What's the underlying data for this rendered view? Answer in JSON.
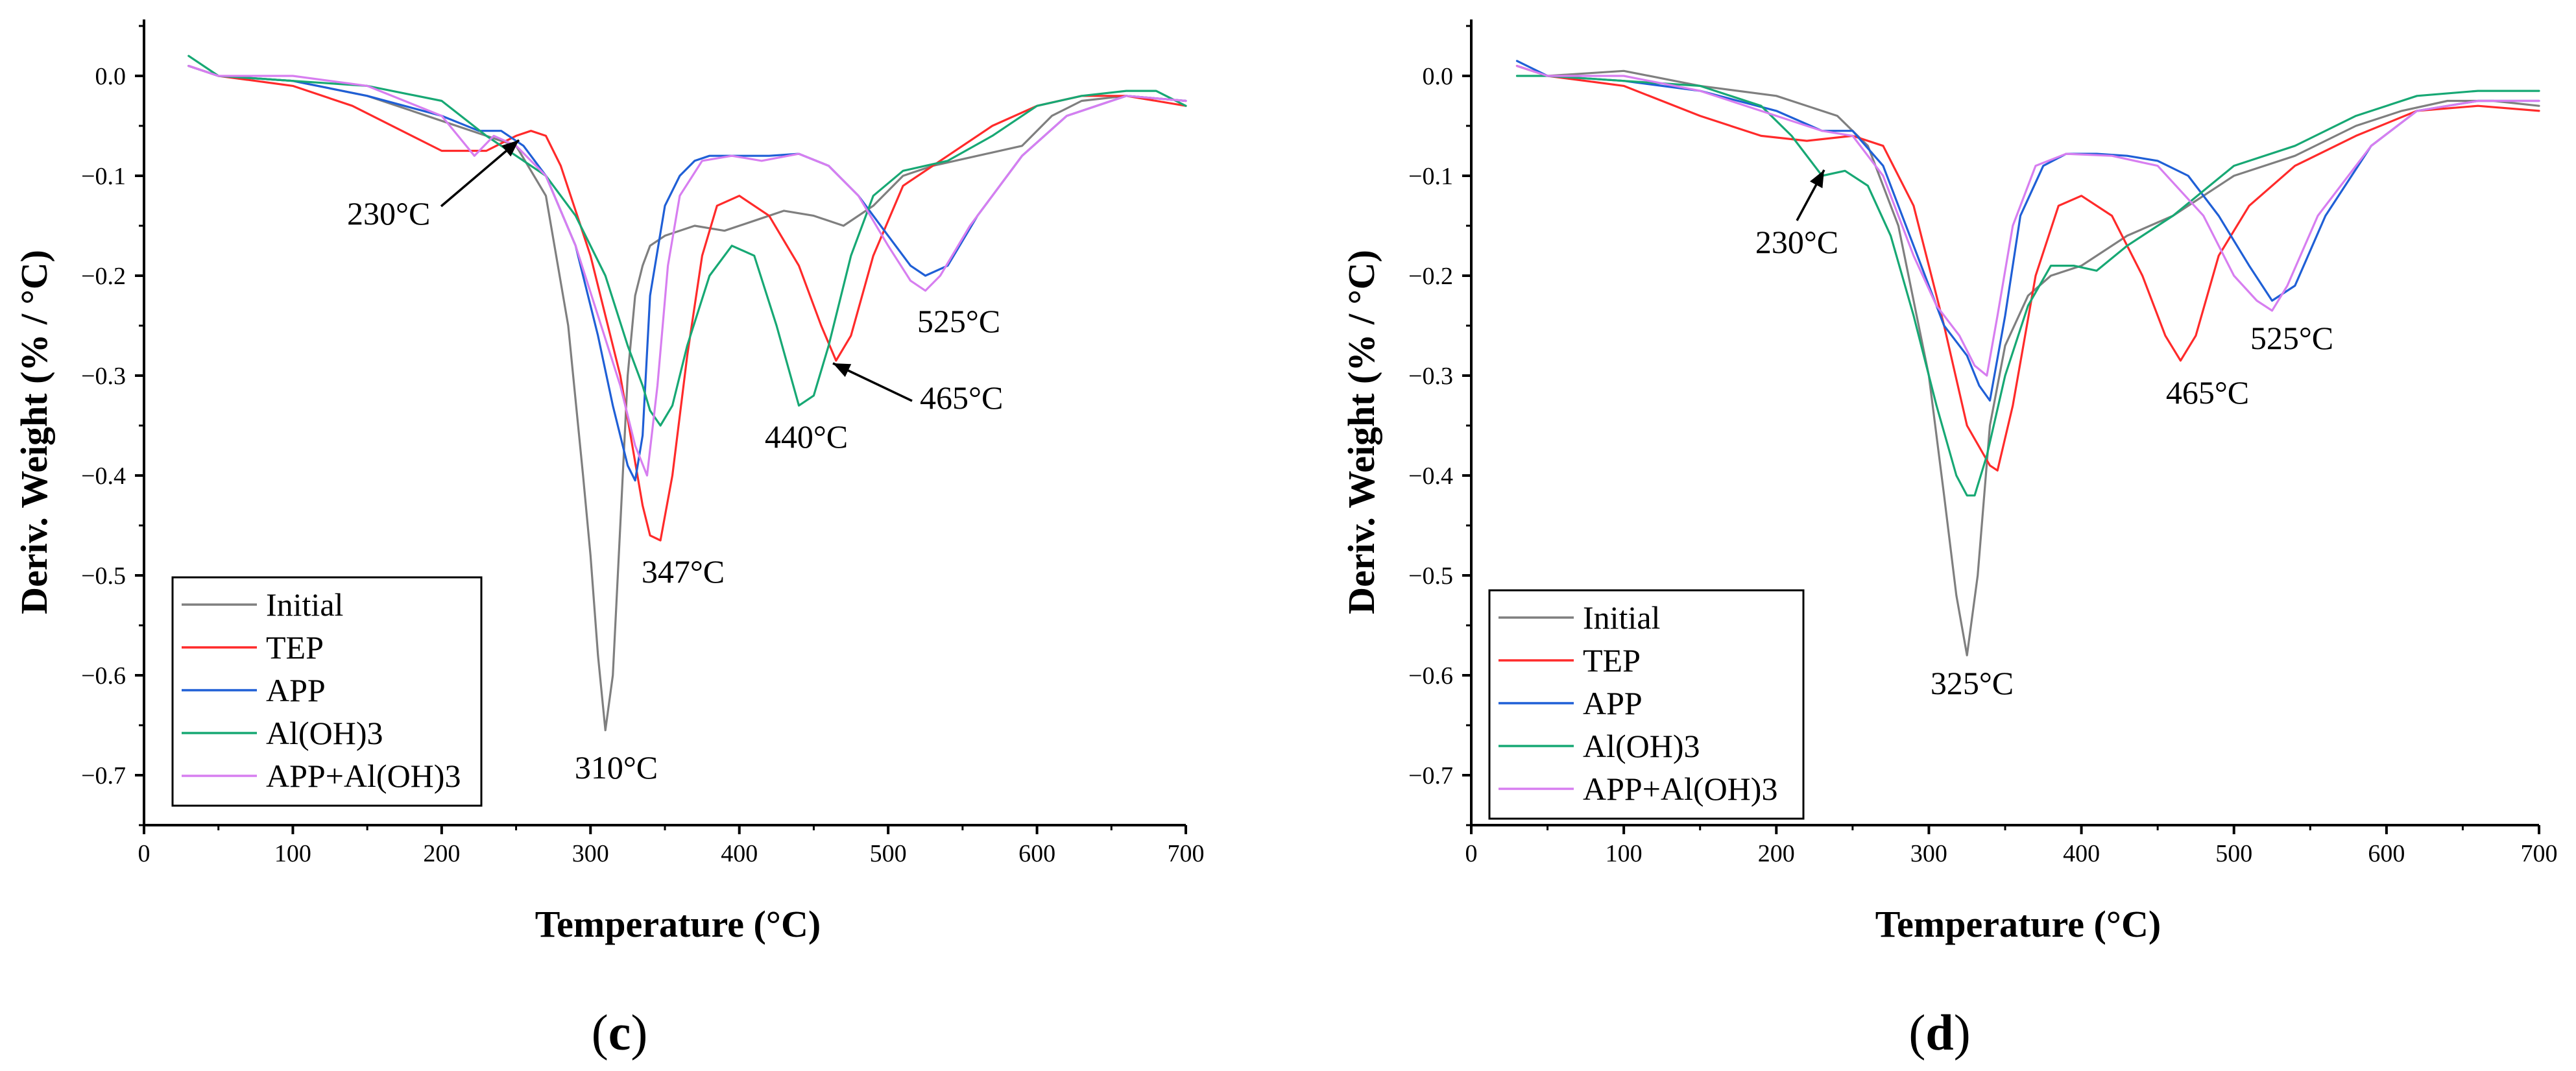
{
  "figure": {
    "panels": [
      "c",
      "d"
    ]
  },
  "colors": {
    "Initial": "#7f7f7f",
    "TEP": "#ff2a2a",
    "APP": "#1f5fd6",
    "Al(OH)3": "#17a874",
    "APP+Al(OH)3": "#d77ef0"
  },
  "chart_data": [
    {
      "type": "line",
      "panel": "c",
      "panel_label": "(c)",
      "panel_letter": "c",
      "xlabel": "Temperature (°C)",
      "ylabel": "Deriv. Weight (% / °C)",
      "xlim": [
        0,
        700
      ],
      "ylim": [
        -0.75,
        0.05
      ],
      "xticks": [
        0,
        100,
        200,
        300,
        400,
        500,
        600,
        700
      ],
      "xtick_labels": [
        "0",
        "100",
        "200",
        "300",
        "400",
        "500",
        "600",
        "700"
      ],
      "yticks": [
        0.0,
        -0.1,
        -0.2,
        -0.3,
        -0.4,
        -0.5,
        -0.6,
        -0.7
      ],
      "ytick_labels": [
        "0.0",
        "−0.1",
        "−0.2",
        "−0.3",
        "−0.4",
        "−0.5",
        "−0.6",
        "−0.7"
      ],
      "grid": false,
      "legend_position": "bottom-left",
      "legend": [
        "Initial",
        "TEP",
        "APP",
        "Al(OH)3",
        "APP+Al(OH)3"
      ],
      "annotations": [
        {
          "text": "230°C",
          "x": 230,
          "y": -0.07,
          "arrow": true
        },
        {
          "text": "310°C",
          "x": 310,
          "y": -0.655,
          "arrow": false
        },
        {
          "text": "347°C",
          "x": 347,
          "y": -0.47,
          "arrow": false
        },
        {
          "text": "440°C",
          "x": 440,
          "y": -0.33,
          "arrow": false
        },
        {
          "text": "465°C",
          "x": 465,
          "y": -0.285,
          "arrow": true
        },
        {
          "text": "525°C",
          "x": 525,
          "y": -0.2,
          "arrow": false
        }
      ],
      "series": [
        {
          "name": "Initial",
          "x": [
            30,
            50,
            100,
            150,
            200,
            230,
            250,
            270,
            285,
            295,
            300,
            305,
            310,
            315,
            320,
            325,
            330,
            335,
            340,
            350,
            370,
            390,
            410,
            430,
            450,
            470,
            490,
            510,
            530,
            560,
            590,
            610,
            630,
            660,
            700
          ],
          "y": [
            0.01,
            0.0,
            -0.005,
            -0.02,
            -0.045,
            -0.06,
            -0.07,
            -0.12,
            -0.25,
            -0.4,
            -0.48,
            -0.58,
            -0.655,
            -0.6,
            -0.45,
            -0.3,
            -0.22,
            -0.19,
            -0.17,
            -0.16,
            -0.15,
            -0.155,
            -0.145,
            -0.135,
            -0.14,
            -0.15,
            -0.13,
            -0.1,
            -0.09,
            -0.08,
            -0.07,
            -0.04,
            -0.025,
            -0.02,
            -0.025
          ]
        },
        {
          "name": "TEP",
          "x": [
            30,
            50,
            100,
            140,
            180,
            200,
            230,
            250,
            260,
            270,
            280,
            300,
            320,
            335,
            340,
            347,
            355,
            365,
            375,
            385,
            400,
            420,
            440,
            455,
            465,
            475,
            490,
            510,
            540,
            570,
            600,
            630,
            660,
            700
          ],
          "y": [
            0.01,
            0.0,
            -0.01,
            -0.03,
            -0.06,
            -0.075,
            -0.075,
            -0.06,
            -0.055,
            -0.06,
            -0.09,
            -0.18,
            -0.3,
            -0.43,
            -0.46,
            -0.465,
            -0.4,
            -0.28,
            -0.18,
            -0.13,
            -0.12,
            -0.14,
            -0.19,
            -0.25,
            -0.285,
            -0.26,
            -0.18,
            -0.11,
            -0.08,
            -0.05,
            -0.03,
            -0.02,
            -0.02,
            -0.03
          ]
        },
        {
          "name": "APP",
          "x": [
            30,
            50,
            100,
            150,
            200,
            225,
            240,
            255,
            270,
            290,
            305,
            315,
            325,
            330,
            335,
            340,
            350,
            360,
            370,
            380,
            400,
            420,
            440,
            460,
            480,
            500,
            515,
            525,
            540,
            560,
            590,
            620,
            660,
            700
          ],
          "y": [
            0.01,
            0.0,
            -0.005,
            -0.02,
            -0.04,
            -0.055,
            -0.055,
            -0.07,
            -0.1,
            -0.17,
            -0.26,
            -0.33,
            -0.39,
            -0.405,
            -0.36,
            -0.22,
            -0.13,
            -0.1,
            -0.085,
            -0.08,
            -0.08,
            -0.08,
            -0.078,
            -0.09,
            -0.12,
            -0.16,
            -0.19,
            -0.2,
            -0.19,
            -0.14,
            -0.08,
            -0.04,
            -0.02,
            -0.025
          ]
        },
        {
          "name": "Al(OH)3",
          "x": [
            30,
            50,
            100,
            150,
            200,
            230,
            250,
            270,
            290,
            310,
            325,
            335,
            340,
            347,
            355,
            365,
            380,
            395,
            410,
            425,
            440,
            450,
            460,
            475,
            490,
            510,
            540,
            570,
            600,
            630,
            660,
            680,
            700
          ],
          "y": [
            0.02,
            0.0,
            -0.005,
            -0.01,
            -0.025,
            -0.06,
            -0.08,
            -0.1,
            -0.14,
            -0.2,
            -0.27,
            -0.31,
            -0.335,
            -0.35,
            -0.33,
            -0.27,
            -0.2,
            -0.17,
            -0.18,
            -0.25,
            -0.33,
            -0.32,
            -0.27,
            -0.18,
            -0.12,
            -0.095,
            -0.085,
            -0.06,
            -0.03,
            -0.02,
            -0.015,
            -0.015,
            -0.03
          ]
        },
        {
          "name": "APP+Al(OH)3",
          "x": [
            30,
            50,
            100,
            150,
            200,
            222,
            235,
            250,
            270,
            290,
            305,
            320,
            330,
            338,
            345,
            352,
            360,
            375,
            395,
            415,
            440,
            460,
            480,
            500,
            515,
            525,
            535,
            555,
            590,
            620,
            660,
            700
          ],
          "y": [
            0.01,
            0.0,
            0.0,
            -0.01,
            -0.04,
            -0.08,
            -0.06,
            -0.07,
            -0.1,
            -0.17,
            -0.24,
            -0.31,
            -0.37,
            -0.4,
            -0.31,
            -0.19,
            -0.12,
            -0.085,
            -0.08,
            -0.085,
            -0.078,
            -0.09,
            -0.12,
            -0.17,
            -0.205,
            -0.215,
            -0.2,
            -0.15,
            -0.08,
            -0.04,
            -0.02,
            -0.025
          ]
        }
      ]
    },
    {
      "type": "line",
      "panel": "d",
      "panel_label": "(d)",
      "panel_letter": "d",
      "xlabel": "Temperature (°C)",
      "ylabel": "Deriv. Weight (% / °C)",
      "xlim": [
        0,
        700
      ],
      "ylim": [
        -0.75,
        0.05
      ],
      "xticks": [
        0,
        100,
        200,
        300,
        400,
        500,
        600,
        700
      ],
      "xtick_labels": [
        "0",
        "100",
        "200",
        "300",
        "400",
        "500",
        "600",
        "700"
      ],
      "yticks": [
        0.0,
        -0.1,
        -0.2,
        -0.3,
        -0.4,
        -0.5,
        -0.6,
        -0.7
      ],
      "ytick_labels": [
        "0.0",
        "−0.1",
        "−0.2",
        "−0.3",
        "−0.4",
        "−0.5",
        "−0.6",
        "−0.7"
      ],
      "grid": false,
      "legend_position": "bottom-left",
      "legend": [
        "Initial",
        "TEP",
        "APP",
        "Al(OH)3",
        "APP+Al(OH)3"
      ],
      "annotations": [
        {
          "text": "230°C",
          "x": 230,
          "y": -0.095,
          "arrow": true
        },
        {
          "text": "325°C",
          "x": 325,
          "y": -0.58,
          "arrow": false
        },
        {
          "text": "465°C",
          "x": 465,
          "y": -0.285,
          "arrow": false
        },
        {
          "text": "525°C",
          "x": 525,
          "y": -0.225,
          "arrow": false
        }
      ],
      "series": [
        {
          "name": "Initial",
          "x": [
            30,
            50,
            100,
            150,
            200,
            240,
            260,
            280,
            300,
            310,
            318,
            325,
            332,
            340,
            350,
            365,
            380,
            400,
            430,
            460,
            500,
            540,
            580,
            610,
            640,
            670,
            700
          ],
          "y": [
            0.01,
            0.0,
            0.005,
            -0.01,
            -0.02,
            -0.04,
            -0.07,
            -0.15,
            -0.3,
            -0.42,
            -0.52,
            -0.58,
            -0.5,
            -0.35,
            -0.27,
            -0.22,
            -0.2,
            -0.19,
            -0.16,
            -0.14,
            -0.1,
            -0.08,
            -0.05,
            -0.035,
            -0.025,
            -0.025,
            -0.03
          ]
        },
        {
          "name": "TEP",
          "x": [
            30,
            50,
            100,
            150,
            190,
            220,
            250,
            270,
            290,
            310,
            325,
            340,
            345,
            355,
            370,
            385,
            400,
            420,
            440,
            455,
            465,
            475,
            490,
            510,
            540,
            580,
            620,
            660,
            700
          ],
          "y": [
            0.01,
            0.0,
            -0.01,
            -0.04,
            -0.06,
            -0.065,
            -0.06,
            -0.07,
            -0.13,
            -0.25,
            -0.35,
            -0.39,
            -0.395,
            -0.33,
            -0.2,
            -0.13,
            -0.12,
            -0.14,
            -0.2,
            -0.26,
            -0.285,
            -0.26,
            -0.18,
            -0.13,
            -0.09,
            -0.06,
            -0.035,
            -0.03,
            -0.035
          ]
        },
        {
          "name": "APP",
          "x": [
            30,
            50,
            100,
            150,
            200,
            230,
            250,
            270,
            290,
            310,
            325,
            333,
            340,
            350,
            360,
            375,
            390,
            410,
            430,
            450,
            470,
            490,
            510,
            525,
            540,
            560,
            590,
            620,
            660,
            700
          ],
          "y": [
            0.015,
            0.0,
            -0.005,
            -0.015,
            -0.035,
            -0.055,
            -0.055,
            -0.09,
            -0.17,
            -0.25,
            -0.28,
            -0.31,
            -0.325,
            -0.24,
            -0.14,
            -0.09,
            -0.078,
            -0.078,
            -0.08,
            -0.085,
            -0.1,
            -0.14,
            -0.19,
            -0.225,
            -0.21,
            -0.14,
            -0.07,
            -0.035,
            -0.025,
            -0.025
          ]
        },
        {
          "name": "Al(OH)3",
          "x": [
            30,
            50,
            100,
            150,
            190,
            210,
            230,
            245,
            260,
            275,
            290,
            305,
            318,
            325,
            330,
            338,
            350,
            365,
            380,
            395,
            410,
            430,
            460,
            500,
            540,
            580,
            620,
            660,
            700
          ],
          "y": [
            0.0,
            0.0,
            -0.005,
            -0.01,
            -0.03,
            -0.06,
            -0.1,
            -0.095,
            -0.11,
            -0.16,
            -0.24,
            -0.33,
            -0.4,
            -0.42,
            -0.42,
            -0.38,
            -0.3,
            -0.23,
            -0.19,
            -0.19,
            -0.195,
            -0.17,
            -0.14,
            -0.09,
            -0.07,
            -0.04,
            -0.02,
            -0.015,
            -0.015
          ]
        },
        {
          "name": "APP+Al(OH)3",
          "x": [
            30,
            50,
            100,
            150,
            200,
            230,
            250,
            270,
            290,
            305,
            320,
            330,
            338,
            345,
            355,
            370,
            390,
            420,
            450,
            480,
            500,
            515,
            525,
            535,
            555,
            590,
            620,
            660,
            700
          ],
          "y": [
            0.01,
            0.0,
            0.0,
            -0.015,
            -0.04,
            -0.055,
            -0.06,
            -0.1,
            -0.18,
            -0.23,
            -0.26,
            -0.29,
            -0.3,
            -0.24,
            -0.15,
            -0.09,
            -0.078,
            -0.08,
            -0.09,
            -0.14,
            -0.2,
            -0.225,
            -0.235,
            -0.21,
            -0.14,
            -0.07,
            -0.035,
            -0.025,
            -0.025
          ]
        }
      ]
    }
  ]
}
